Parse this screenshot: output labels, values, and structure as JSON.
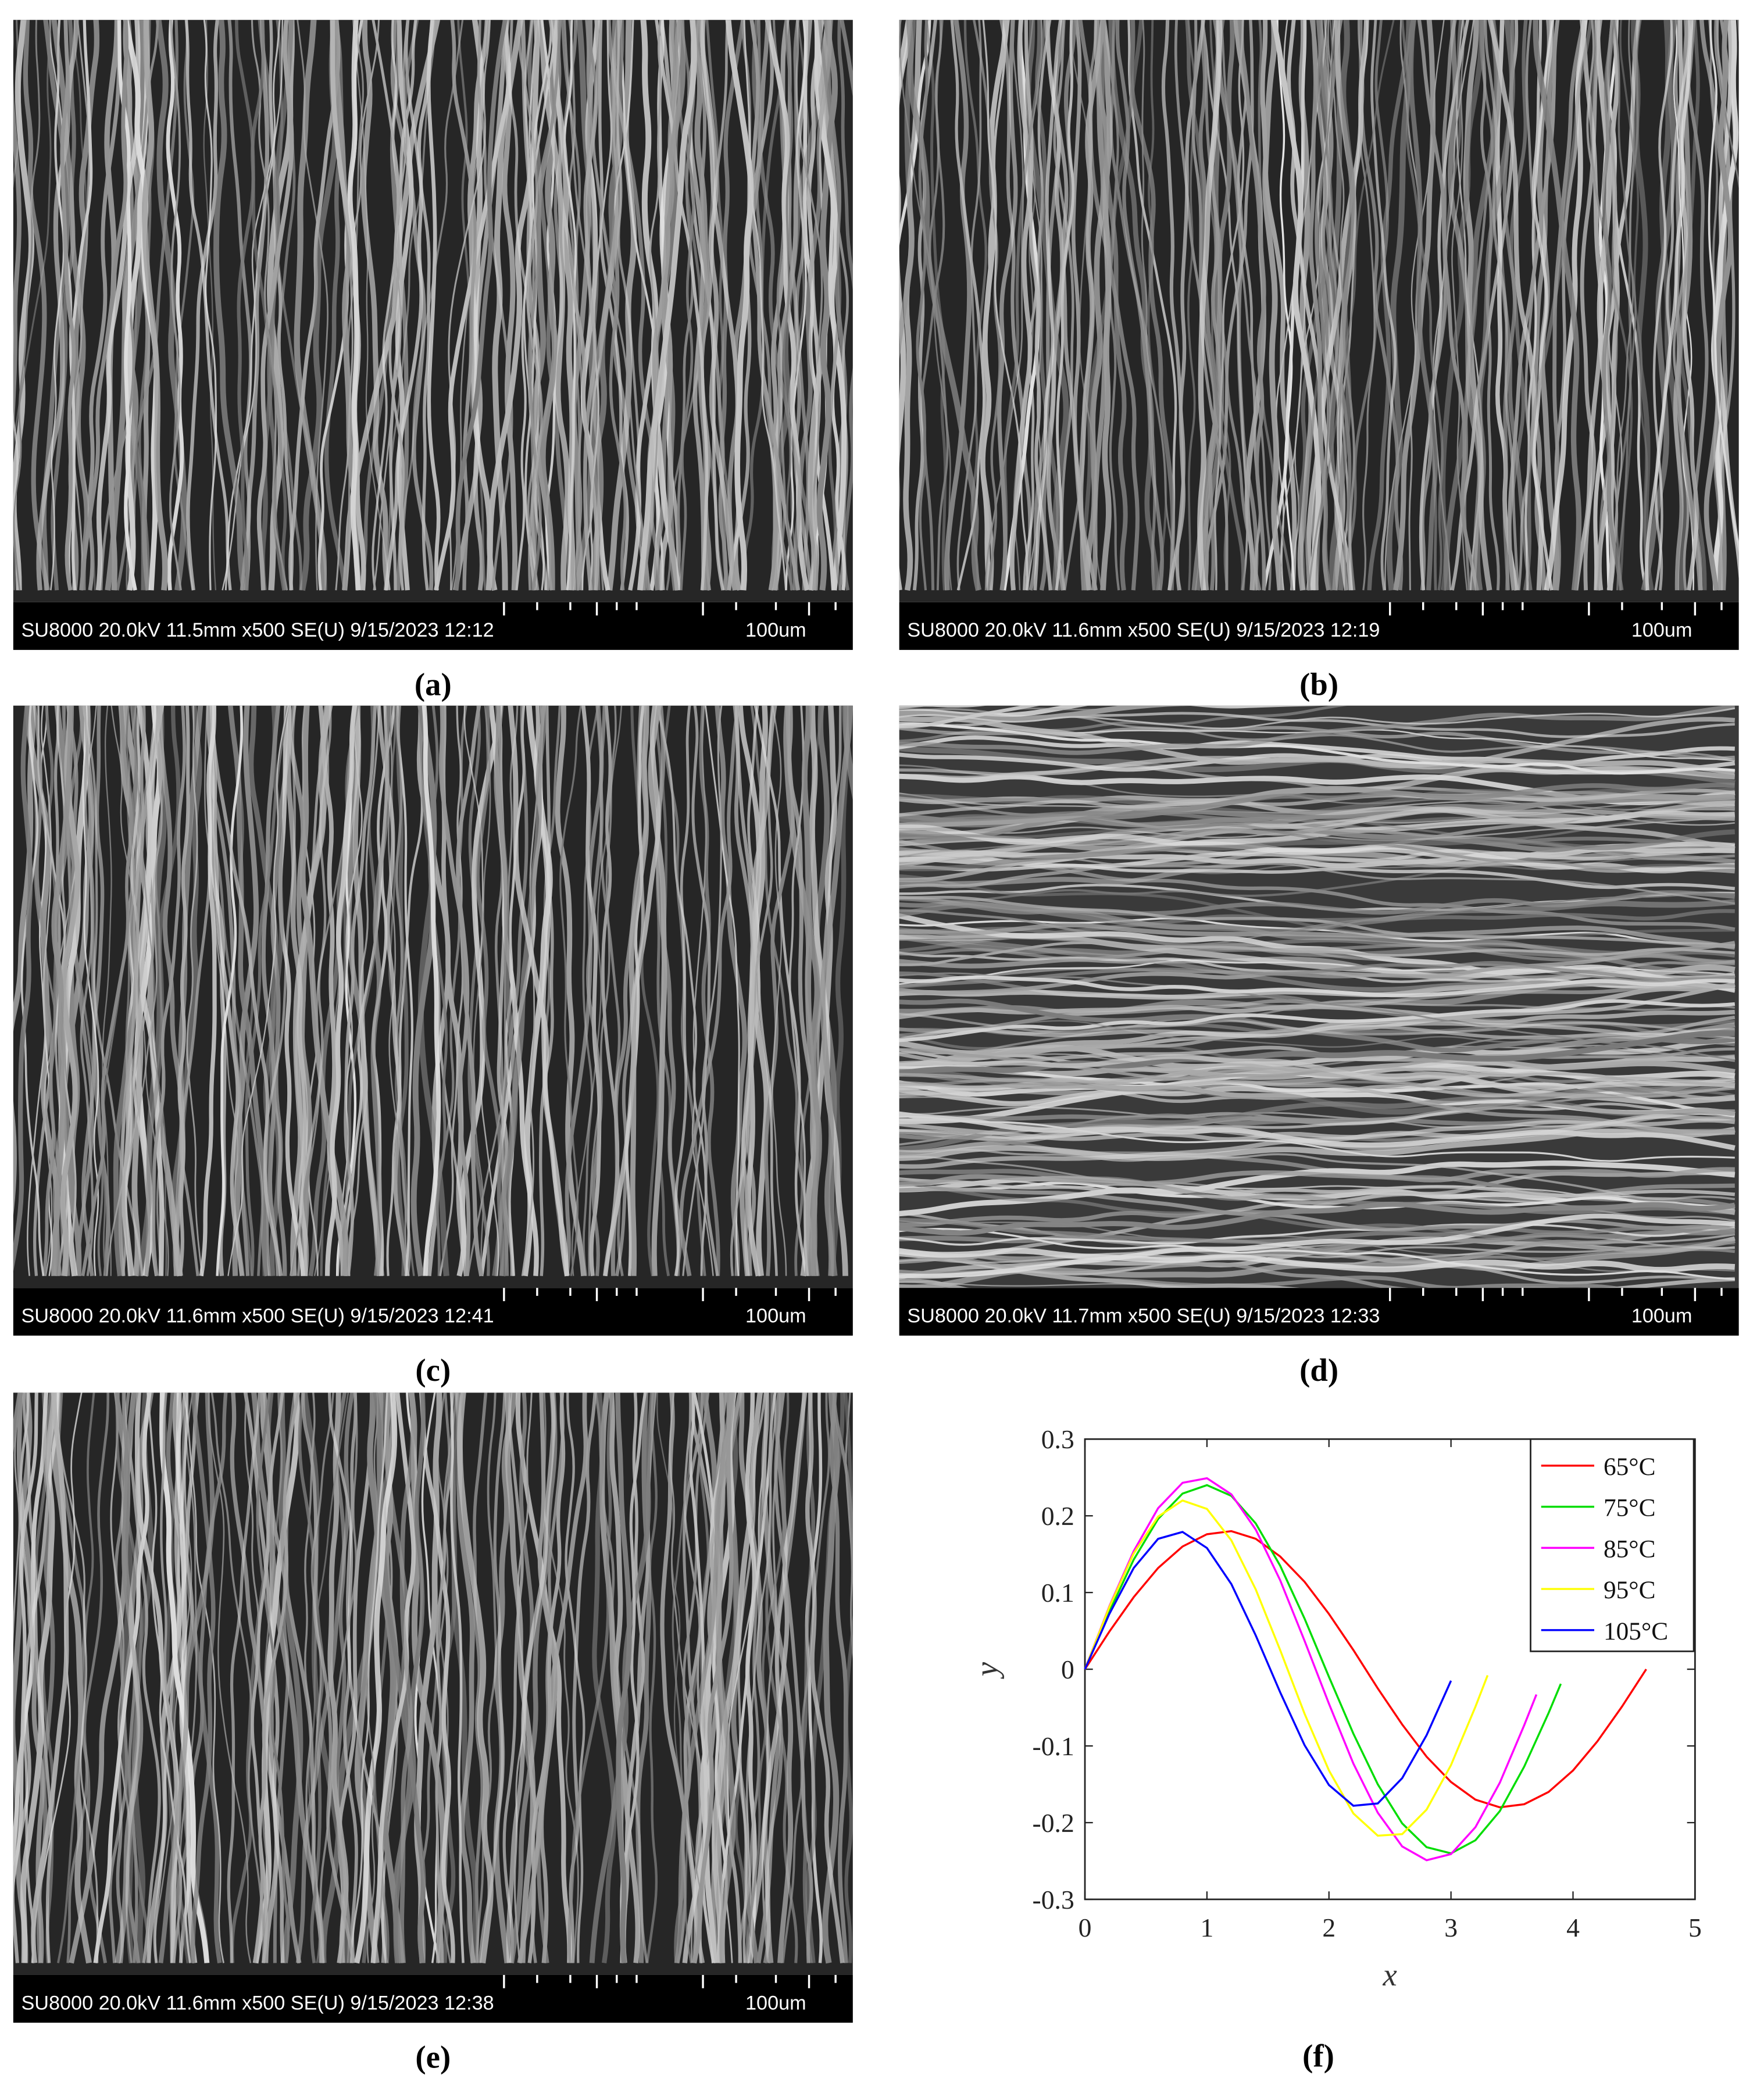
{
  "panels": [
    {
      "label": "(a)",
      "info": "SU8000 20.0kV 11.5mm x500 SE(U) 9/15/2023 12:12",
      "scale": "100um"
    },
    {
      "label": "(b)",
      "info": "SU8000 20.0kV 11.6mm x500 SE(U) 9/15/2023 12:19",
      "scale": "100um"
    },
    {
      "label": "(c)",
      "info": "SU8000 20.0kV 11.6mm x500 SE(U) 9/15/2023 12:41",
      "scale": "100um"
    },
    {
      "label": "(d)",
      "info": "SU8000 20.0kV 11.7mm x500 SE(U) 9/15/2023 12:33",
      "scale": "100um"
    },
    {
      "label": "(e)",
      "info": "SU8000 20.0kV 11.6mm x500 SE(U) 9/15/2023 12:38",
      "scale": "100um"
    }
  ],
  "panel_f_label": "(f)",
  "chart_data": {
    "type": "line",
    "x_label": "x",
    "y_label": "y",
    "xlim": [
      0,
      5
    ],
    "xticks": [
      0,
      1,
      2,
      3,
      4,
      5
    ],
    "ylim": [
      -0.3,
      0.3
    ],
    "yticks": [
      -0.3,
      -0.2,
      -0.1,
      0,
      0.1,
      0.2,
      0.3
    ],
    "legend": "upper right",
    "grid": false,
    "series": [
      {
        "name": "65°C",
        "color": "#ff0000",
        "x": [
          0,
          0.2,
          0.4,
          0.6,
          0.8,
          1.0,
          1.2,
          1.4,
          1.6,
          1.8,
          2.0,
          2.2,
          2.4,
          2.6,
          2.8,
          3.0,
          3.2,
          3.4,
          3.6,
          3.8,
          4.0,
          4.2,
          4.4,
          4.6
        ],
        "values": [
          0,
          0.049,
          0.094,
          0.132,
          0.16,
          0.176,
          0.18,
          0.17,
          0.147,
          0.114,
          0.072,
          0.025,
          -0.025,
          -0.072,
          -0.114,
          -0.147,
          -0.17,
          -0.18,
          -0.176,
          -0.16,
          -0.132,
          -0.094,
          -0.049,
          0
        ]
      },
      {
        "name": "75°C",
        "color": "#00dd00",
        "x": [
          0,
          0.2,
          0.4,
          0.6,
          0.8,
          1.0,
          1.2,
          1.4,
          1.6,
          1.8,
          2.0,
          2.2,
          2.4,
          2.6,
          2.8,
          3.0,
          3.2,
          3.4,
          3.6,
          3.8,
          3.9
        ],
        "values": [
          0,
          0.075,
          0.143,
          0.196,
          0.229,
          0.24,
          0.226,
          0.19,
          0.135,
          0.066,
          -0.01,
          -0.084,
          -0.15,
          -0.201,
          -0.232,
          -0.24,
          -0.223,
          -0.185,
          -0.127,
          -0.057,
          -0.019
        ]
      },
      {
        "name": "85°C",
        "color": "#ff00ff",
        "x": [
          0,
          0.2,
          0.4,
          0.6,
          0.8,
          1.0,
          1.2,
          1.4,
          1.6,
          1.8,
          2.0,
          2.2,
          2.4,
          2.6,
          2.8,
          3.0,
          3.2,
          3.4,
          3.6,
          3.7
        ],
        "values": [
          0,
          0.082,
          0.154,
          0.21,
          0.243,
          0.249,
          0.228,
          0.182,
          0.116,
          0.037,
          -0.045,
          -0.123,
          -0.187,
          -0.231,
          -0.249,
          -0.241,
          -0.206,
          -0.148,
          -0.073,
          -0.033
        ]
      },
      {
        "name": "95°C",
        "color": "#ffff00",
        "x": [
          0,
          0.2,
          0.4,
          0.6,
          0.8,
          1.0,
          1.2,
          1.4,
          1.6,
          1.8,
          2.0,
          2.2,
          2.4,
          2.6,
          2.8,
          3.0,
          3.2,
          3.3
        ],
        "values": [
          0,
          0.081,
          0.151,
          0.199,
          0.22,
          0.209,
          0.168,
          0.104,
          0.025,
          -0.058,
          -0.132,
          -0.188,
          -0.217,
          -0.215,
          -0.183,
          -0.125,
          -0.049,
          -0.008
        ]
      },
      {
        "name": "105°C",
        "color": "#0000ff",
        "x": [
          0,
          0.2,
          0.4,
          0.6,
          0.8,
          1.0,
          1.2,
          1.4,
          1.6,
          1.8,
          2.0,
          2.2,
          2.4,
          2.6,
          2.8,
          3.0
        ],
        "values": [
          0,
          0.072,
          0.132,
          0.17,
          0.179,
          0.158,
          0.111,
          0.044,
          -0.03,
          -0.099,
          -0.151,
          -0.178,
          -0.175,
          -0.142,
          -0.086,
          -0.015
        ]
      }
    ]
  }
}
